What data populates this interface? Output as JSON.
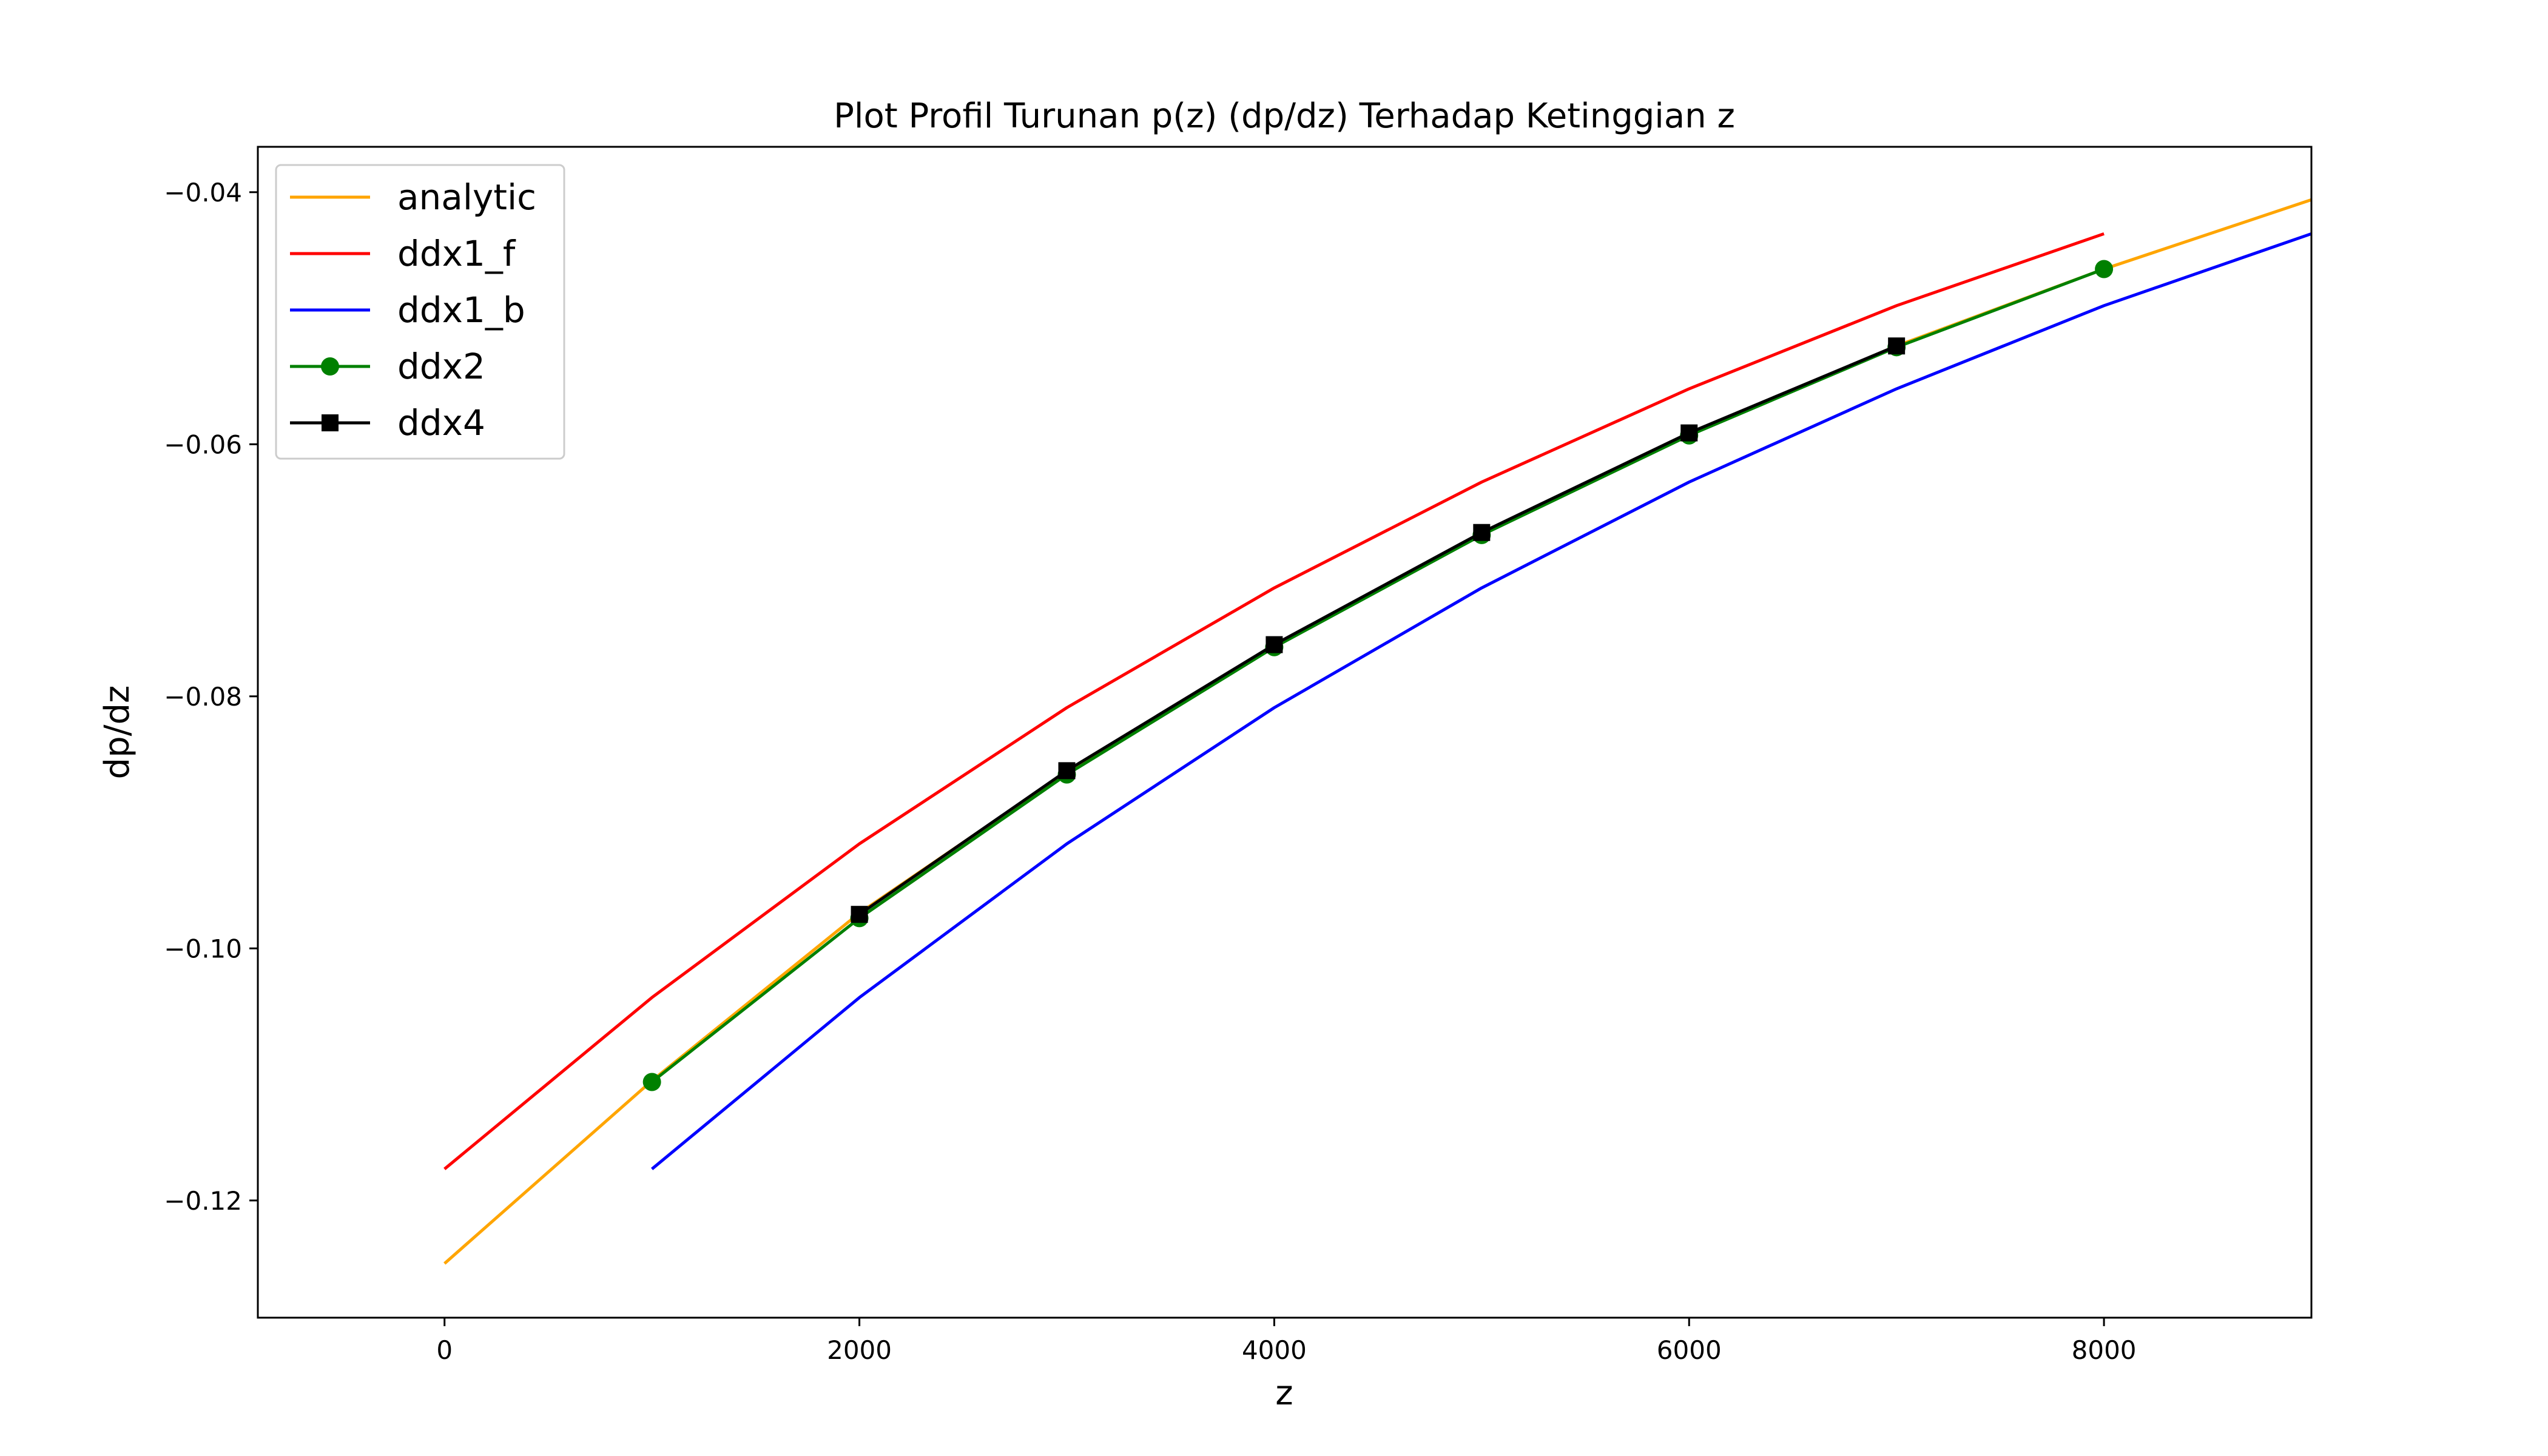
{
  "chart_data": {
    "type": "line",
    "title": "Plot Profil Turunan p(z) (dp/dz) Terhadap Ketinggian z",
    "xlabel": "z",
    "ylabel": "dp/dz",
    "xlim": [
      -900,
      18900
    ],
    "ylim": [
      -0.1293,
      -0.0364
    ],
    "xticks": [
      0,
      2000,
      4000,
      6000,
      8000
    ],
    "xtick_labels": [
      "0",
      "2000",
      "4000",
      "6000",
      "8000"
    ],
    "yticks": [
      -0.04,
      -0.06,
      -0.08,
      -0.1,
      -0.12
    ],
    "ytick_labels": [
      "−0.04",
      "−0.06",
      "−0.08",
      "−0.10",
      "−0.12"
    ],
    "grid": false,
    "legend_position": "top-left",
    "series": [
      {
        "name": "analytic",
        "color": "#ffa500",
        "marker": "none",
        "x": [
          0,
          1000,
          2000,
          3000,
          4000,
          5000,
          6000,
          7000,
          8000,
          9000
        ],
        "y": [
          -0.125,
          -0.1105,
          -0.0972,
          -0.086,
          -0.076,
          -0.0671,
          -0.0592,
          -0.0522,
          -0.0461,
          -0.0406
        ]
      },
      {
        "name": "ddx1_f",
        "color": "#ff0000",
        "marker": "none",
        "x": [
          0,
          1000,
          2000,
          3000,
          4000,
          5000,
          6000,
          7000,
          8000
        ],
        "y": [
          -0.1175,
          -0.1039,
          -0.0917,
          -0.0809,
          -0.0714,
          -0.063,
          -0.0556,
          -0.049,
          -0.0433
        ]
      },
      {
        "name": "ddx1_b",
        "color": "#0000ff",
        "marker": "none",
        "x": [
          1000,
          2000,
          3000,
          4000,
          5000,
          6000,
          7000,
          8000,
          9000
        ],
        "y": [
          -0.1175,
          -0.1039,
          -0.0917,
          -0.0809,
          -0.0714,
          -0.063,
          -0.0556,
          -0.049,
          -0.0433
        ]
      },
      {
        "name": "ddx2",
        "color": "#008000",
        "marker": "circle",
        "x": [
          1000,
          2000,
          3000,
          4000,
          5000,
          6000,
          7000,
          8000
        ],
        "y": [
          -0.1106,
          -0.0976,
          -0.0862,
          -0.0761,
          -0.0672,
          -0.0593,
          -0.0523,
          -0.0461
        ]
      },
      {
        "name": "ddx4",
        "color": "#000000",
        "marker": "square",
        "x": [
          2000,
          3000,
          4000,
          5000,
          6000,
          7000
        ],
        "y": [
          -0.0973,
          -0.0859,
          -0.0759,
          -0.067,
          -0.0591,
          -0.0522
        ]
      }
    ]
  }
}
